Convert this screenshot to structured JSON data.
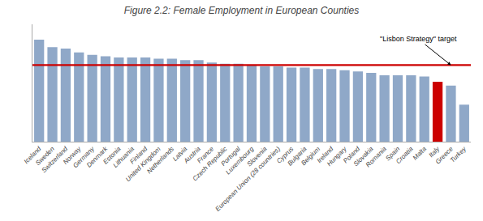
{
  "chart_data": {
    "type": "bar",
    "title": "Figure 2.2: Female Employment in European Counties",
    "categories": [
      "Iceland",
      "Sweden",
      "Switzerland",
      "Norway",
      "Germany",
      "Denmark",
      "Estonia",
      "Lithuania",
      "Finland",
      "United Kingdom",
      "Netherlands",
      "Latvia",
      "Austria",
      "France",
      "Czech Republic",
      "Portugal",
      "Luxembourg",
      "Slovenia",
      "European Union (28 countries)",
      "Cyprus",
      "Bulgaria",
      "Belgium",
      "Ireland",
      "Hungary",
      "Poland",
      "Slovakia",
      "Romania",
      "Spain",
      "Croatia",
      "Malta",
      "Italy",
      "Greece",
      "Turkey"
    ],
    "values": [
      80,
      74,
      73,
      70,
      68,
      67,
      66,
      66,
      66,
      65,
      65,
      64,
      64,
      62,
      61,
      61,
      60,
      59,
      59,
      58,
      58,
      57,
      57,
      56,
      55,
      54,
      52,
      52,
      52,
      51,
      47,
      44,
      29
    ],
    "colors": [
      "#8fa8c8",
      "#8fa8c8",
      "#8fa8c8",
      "#8fa8c8",
      "#8fa8c8",
      "#8fa8c8",
      "#8fa8c8",
      "#8fa8c8",
      "#8fa8c8",
      "#8fa8c8",
      "#8fa8c8",
      "#8fa8c8",
      "#8fa8c8",
      "#8fa8c8",
      "#8fa8c8",
      "#8fa8c8",
      "#8fa8c8",
      "#8fa8c8",
      "#8fa8c8",
      "#8fa8c8",
      "#8fa8c8",
      "#8fa8c8",
      "#8fa8c8",
      "#8fa8c8",
      "#8fa8c8",
      "#8fa8c8",
      "#8fa8c8",
      "#8fa8c8",
      "#8fa8c8",
      "#8fa8c8",
      "#cc0000",
      "#8fa8c8",
      "#8fa8c8"
    ],
    "reference_line": {
      "value": 60,
      "color": "#cc0000"
    },
    "annotations": [
      {
        "text": "\"Lisbon Strategy\" target",
        "category": "Greece"
      }
    ],
    "ylim": [
      0,
      92
    ],
    "yticks": [],
    "grid": false,
    "tick_labels": "x"
  }
}
